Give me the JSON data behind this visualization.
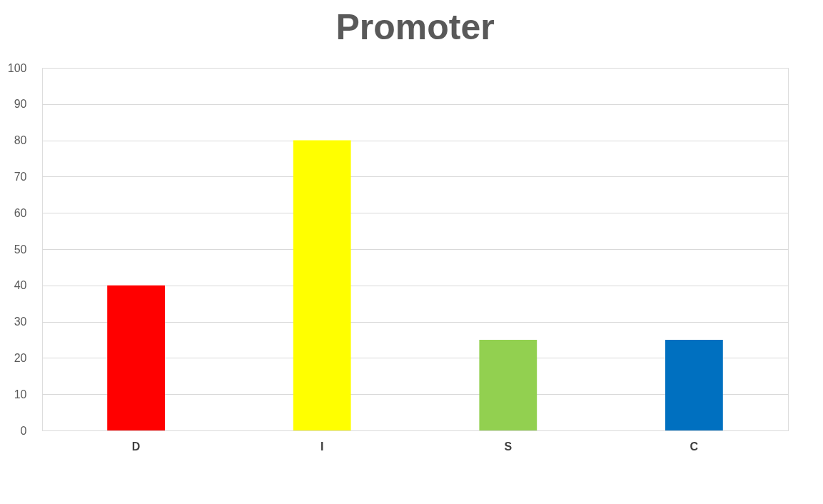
{
  "chart_data": {
    "type": "bar",
    "title": "Promoter",
    "categories": [
      "D",
      "I",
      "S",
      "C"
    ],
    "values": [
      40,
      80,
      25,
      25
    ],
    "colors": [
      "#ff0000",
      "#ffff00",
      "#92d050",
      "#0070c0"
    ],
    "ylim": [
      0,
      100
    ],
    "yticks": [
      0,
      10,
      20,
      30,
      40,
      50,
      60,
      70,
      80,
      90,
      100
    ],
    "grid": "y"
  }
}
